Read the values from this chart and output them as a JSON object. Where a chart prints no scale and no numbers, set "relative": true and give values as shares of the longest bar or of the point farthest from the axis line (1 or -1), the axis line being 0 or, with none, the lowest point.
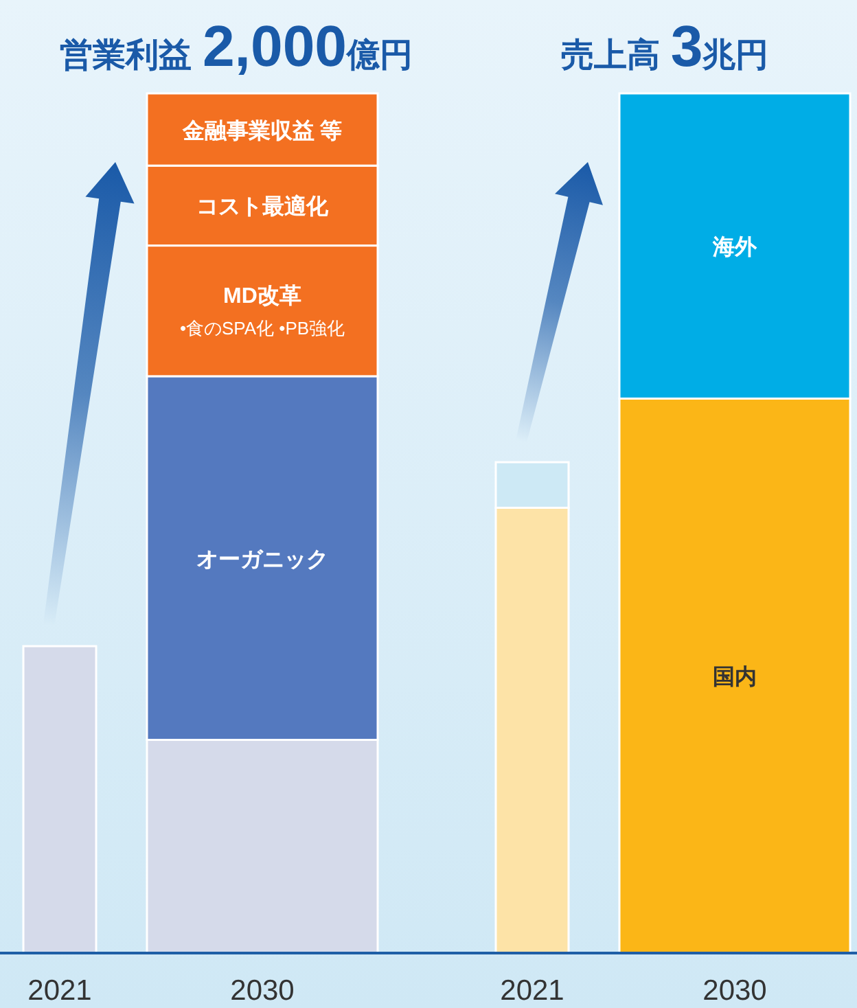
{
  "chart_data": [
    {
      "type": "bar",
      "title": "営業利益2,000億円",
      "categories": [
        "2021",
        "2030"
      ],
      "stacked": true,
      "relative": true,
      "series": [
        {
          "color": "#d5daea",
          "values": [
            0.357,
            0.248
          ]
        },
        {
          "name": "オーガニック",
          "color": "#5479bf",
          "values": [
            null,
            0.423
          ]
        },
        {
          "name": "MD改革",
          "color": "#f37021",
          "values": [
            null,
            0.152
          ]
        },
        {
          "name": "コスト最適化",
          "color": "#f37021",
          "values": [
            null,
            0.093
          ]
        },
        {
          "name": "金融事業収益 等",
          "color": "#f37021",
          "values": [
            null,
            0.084
          ]
        }
      ],
      "annotations": [
        "•食のSPA化 •PB強化"
      ]
    },
    {
      "type": "bar",
      "title": "売上高3兆円",
      "categories": [
        "2021",
        "2030"
      ],
      "stacked": true,
      "relative": true,
      "series": [
        {
          "name": "国内",
          "colors": [
            "#fde3a7",
            "#fbb617"
          ],
          "values": [
            0.518,
            0.645
          ]
        },
        {
          "name": "海外",
          "colors": [
            "#cde9f5",
            "#00ade6"
          ],
          "values": [
            0.053,
            0.355
          ]
        }
      ]
    }
  ]
}
